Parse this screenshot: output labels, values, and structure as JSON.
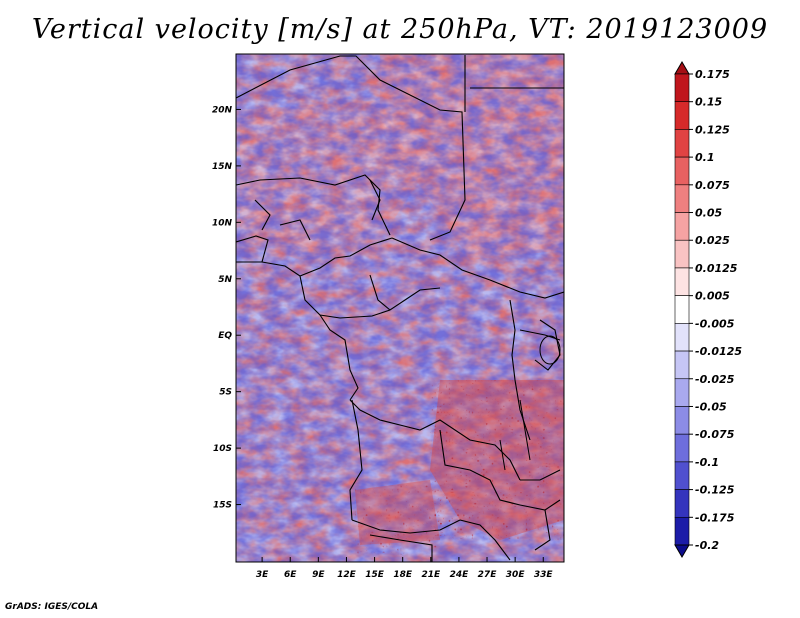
{
  "title": "Vertical velocity [m/s] at 250hPa, VT: 2019123009",
  "credit": "GrADS: IGES/COLA",
  "map": {
    "lat_labels": [
      "20N",
      "15N",
      "10N",
      "5N",
      "EQ",
      "5S",
      "10S",
      "15S"
    ],
    "lon_labels": [
      "3E",
      "6E",
      "9E",
      "12E",
      "15E",
      "18E",
      "21E",
      "24E",
      "27E",
      "30E",
      "33E"
    ],
    "lon_range": [
      0,
      35
    ],
    "lat_range": [
      -20,
      25
    ]
  },
  "colorbar": {
    "levels": [
      "0.175",
      "0.15",
      "0.125",
      "0.1",
      "0.075",
      "0.05",
      "0.025",
      "0.0125",
      "0.005",
      "-0.005",
      "-0.0125",
      "-0.025",
      "-0.05",
      "-0.075",
      "-0.1",
      "-0.125",
      "-0.175",
      "-0.2"
    ],
    "colors": [
      "#a50f15",
      "#c0161d",
      "#d62a2a",
      "#e04343",
      "#e86161",
      "#ef8080",
      "#f5a3a3",
      "#f9c3c3",
      "#fde3e3",
      "#ffffff",
      "#e2e2fb",
      "#c6c6f5",
      "#a9a9ef",
      "#8c8ce6",
      "#6e6edc",
      "#5050cf",
      "#3434bd",
      "#1c1ca8",
      "#0c0c8c"
    ]
  }
}
